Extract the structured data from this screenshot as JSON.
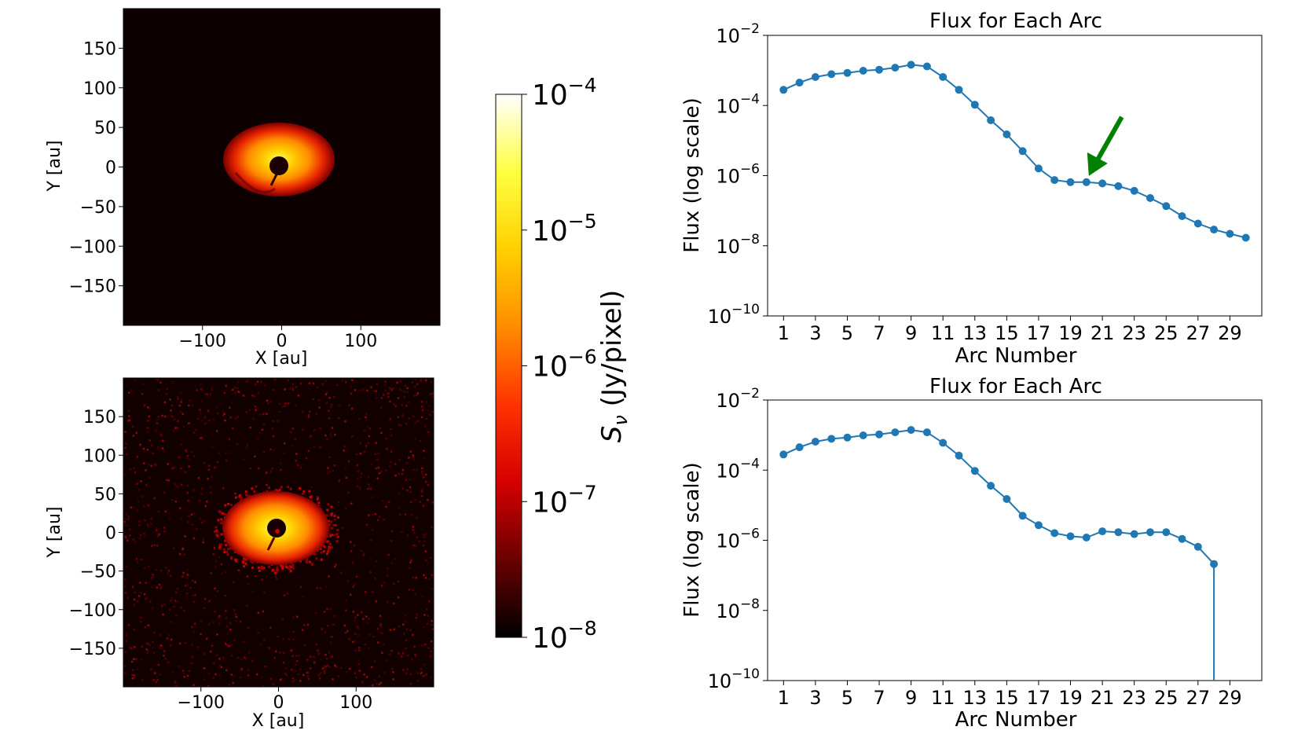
{
  "chart_data": [
    {
      "type": "heatmap",
      "panel": "top-left",
      "xlabel": "X [au]",
      "ylabel": "Y [au]",
      "xticks": [
        "−100",
        "0",
        "100"
      ],
      "yticks": [
        "150",
        "100",
        "50",
        "0",
        "−50",
        "−100",
        "−150"
      ],
      "xlim": [
        -200,
        200
      ],
      "ylim": [
        -200,
        200
      ],
      "features": {
        "disk_center": [
          0,
          0
        ],
        "hole_radius_au": 12,
        "noise": false
      }
    },
    {
      "type": "heatmap",
      "panel": "bottom-left",
      "xlabel": "X [au]",
      "ylabel": "Y [au]",
      "xticks": [
        "−100",
        "0",
        "100"
      ],
      "yticks": [
        "150",
        "100",
        "50",
        "0",
        "−50",
        "−100",
        "−150"
      ],
      "xlim": [
        -200,
        200
      ],
      "ylim": [
        -200,
        200
      ],
      "features": {
        "disk_center": [
          0,
          0
        ],
        "hole_radius_au": 12,
        "noise": true
      }
    },
    {
      "type": "colorbar",
      "label": "Sν (Jy/pixel)",
      "label_base": "S",
      "label_sub": "ν",
      "label_rest": " (Jy/pixel)",
      "scale": "log",
      "range": [
        1e-08,
        0.0001
      ],
      "ticks": [
        {
          "base": "10",
          "exp": "−4",
          "value": 0.0001
        },
        {
          "base": "10",
          "exp": "−5",
          "value": 1e-05
        },
        {
          "base": "10",
          "exp": "−6",
          "value": 1e-06
        },
        {
          "base": "10",
          "exp": "−7",
          "value": 1e-07
        },
        {
          "base": "10",
          "exp": "−8",
          "value": 1e-08
        }
      ],
      "colors": [
        "#000000",
        "#6a0000",
        "#d50000",
        "#ff3300",
        "#ff8c00",
        "#ffd000",
        "#ffff40",
        "#ffffff"
      ]
    },
    {
      "type": "line",
      "panel": "top-right",
      "title": "Flux for Each Arc",
      "xlabel": "Arc Number",
      "ylabel": "Flux (log scale)",
      "yscale": "log",
      "ylim": [
        1e-10,
        0.01
      ],
      "xlim": [
        0,
        31
      ],
      "xticks": [
        1,
        3,
        5,
        7,
        9,
        11,
        13,
        15,
        17,
        19,
        21,
        23,
        25,
        27,
        29
      ],
      "yticks": [
        {
          "base": "10",
          "exp": "−2",
          "value": 0.01
        },
        {
          "base": "10",
          "exp": "−4",
          "value": 0.0001
        },
        {
          "base": "10",
          "exp": "−6",
          "value": 1e-06
        },
        {
          "base": "10",
          "exp": "−8",
          "value": 1e-08
        },
        {
          "base": "10",
          "exp": "−10",
          "value": 1e-10
        }
      ],
      "color": "#1f77b4",
      "x": [
        1,
        2,
        3,
        4,
        5,
        6,
        7,
        8,
        9,
        10,
        11,
        12,
        13,
        14,
        15,
        16,
        17,
        18,
        19,
        20,
        21,
        22,
        23,
        24,
        25,
        26,
        27,
        28,
        29,
        30
      ],
      "y": [
        0.00028,
        0.00045,
        0.00065,
        0.00078,
        0.00085,
        0.00098,
        0.00105,
        0.0012,
        0.00145,
        0.0013,
        0.00065,
        0.00028,
        0.000105,
        3.8e-05,
        1.5e-05,
        5e-06,
        1.6e-06,
        7.5e-07,
        6.5e-07,
        6.5e-07,
        6e-07,
        5e-07,
        3.7e-07,
        2.3e-07,
        1.35e-07,
        7e-08,
        4.3e-08,
        2.9e-08,
        2.2e-08,
        1.7e-08
      ],
      "annotation": {
        "type": "arrow",
        "color": "#008000",
        "points_to_x": 20,
        "points_to_y": 6.5e-07
      }
    },
    {
      "type": "line",
      "panel": "bottom-right",
      "title": "Flux for Each Arc",
      "xlabel": "Arc Number",
      "ylabel": "Flux (log scale)",
      "yscale": "log",
      "ylim": [
        1e-10,
        0.01
      ],
      "xlim": [
        0,
        31
      ],
      "xticks": [
        1,
        3,
        5,
        7,
        9,
        11,
        13,
        15,
        17,
        19,
        21,
        23,
        25,
        27,
        29
      ],
      "yticks": [
        {
          "base": "10",
          "exp": "−2",
          "value": 0.01
        },
        {
          "base": "10",
          "exp": "−4",
          "value": 0.0001
        },
        {
          "base": "10",
          "exp": "−6",
          "value": 1e-06
        },
        {
          "base": "10",
          "exp": "−8",
          "value": 1e-08
        },
        {
          "base": "10",
          "exp": "−10",
          "value": 1e-10
        }
      ],
      "color": "#1f77b4",
      "x": [
        1,
        2,
        3,
        4,
        5,
        6,
        7,
        8,
        9,
        10,
        11,
        12,
        13,
        14,
        15,
        16,
        17,
        18,
        19,
        20,
        21,
        22,
        23,
        24,
        25,
        26,
        27,
        28
      ],
      "y": [
        0.00028,
        0.00045,
        0.00065,
        0.00078,
        0.00085,
        0.00098,
        0.00105,
        0.0012,
        0.0014,
        0.0012,
        0.0006,
        0.00026,
        9.5e-05,
        3.6e-05,
        1.5e-05,
        5e-06,
        2.7e-06,
        1.6e-06,
        1.3e-06,
        1.2e-06,
        1.8e-06,
        1.7e-06,
        1.5e-06,
        1.7e-06,
        1.7e-06,
        1.1e-06,
        6.5e-07,
        2.1e-07
      ],
      "drop_to_floor_after_last": true
    }
  ]
}
